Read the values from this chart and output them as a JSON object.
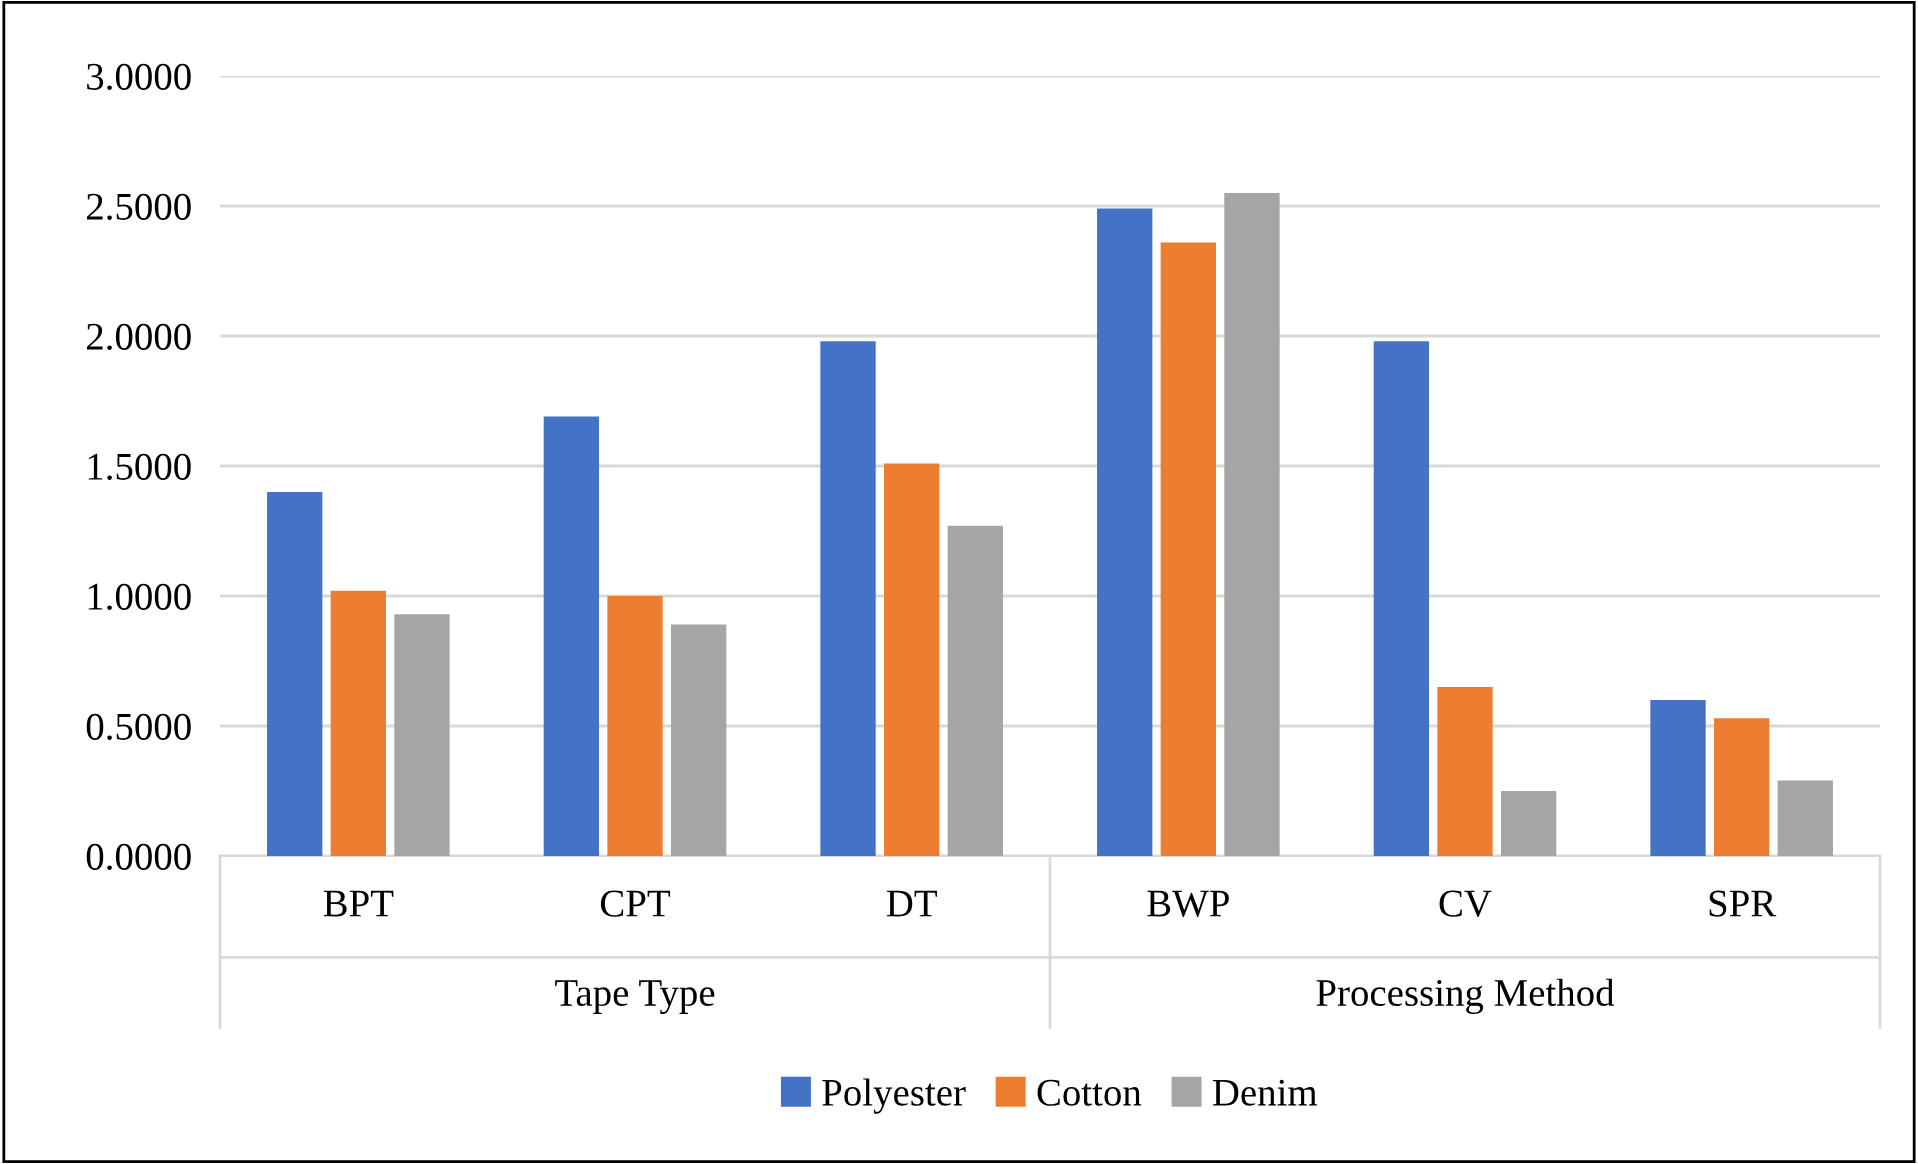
{
  "chart_data": {
    "type": "bar",
    "categories": [
      "BPT",
      "CPT",
      "DT",
      "BWP",
      "CV",
      "SPR"
    ],
    "annotations": [
      "Tape Type",
      "Processing Method"
    ],
    "series": [
      {
        "name": "Polyester",
        "color": "#4472c4",
        "values": [
          1.4,
          1.69,
          1.98,
          2.49,
          1.98,
          0.6
        ]
      },
      {
        "name": "Cotton",
        "color": "#ed7d31",
        "values": [
          1.02,
          1.0,
          1.51,
          2.36,
          0.65,
          0.53
        ]
      },
      {
        "name": "Denim",
        "color": "#a5a5a5",
        "values": [
          0.93,
          0.89,
          1.27,
          2.55,
          0.25,
          0.29
        ]
      }
    ],
    "ylim": [
      0,
      3
    ],
    "yticks": [
      {
        "value": 0,
        "label": "0.0000"
      },
      {
        "value": 0.5,
        "label": "0.5000"
      },
      {
        "value": 1,
        "label": "1.0000"
      },
      {
        "value": 1.5,
        "label": "1.5000"
      },
      {
        "value": 2,
        "label": "2.0000"
      },
      {
        "value": 2.5,
        "label": "2.5000"
      },
      {
        "value": 3,
        "label": "3.0000"
      }
    ],
    "grid": "y",
    "legend": "bottom"
  }
}
